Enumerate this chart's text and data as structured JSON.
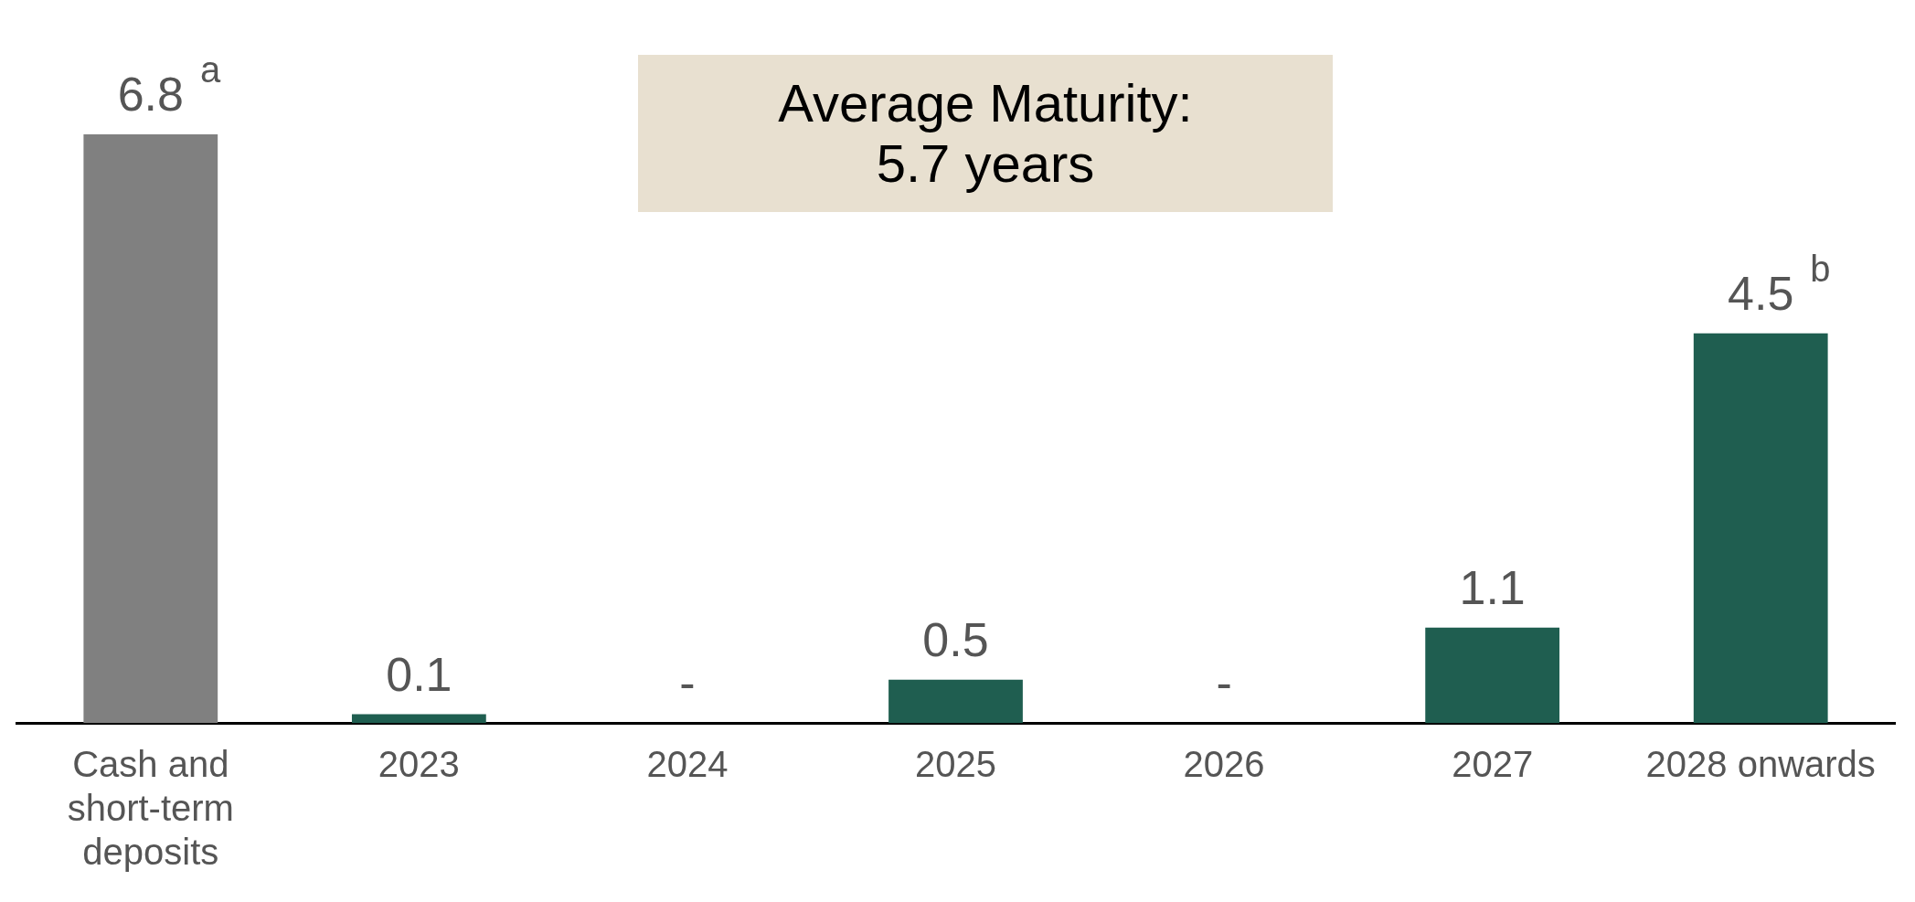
{
  "chart_data": {
    "type": "bar",
    "categories": [
      "Cash and short-term deposits",
      "2023",
      "2024",
      "2025",
      "2026",
      "2027",
      "2028 onwards"
    ],
    "values": [
      6.8,
      0.1,
      0,
      0.5,
      0,
      1.1,
      4.5
    ],
    "colors": [
      "#808080",
      "#1f5e50",
      "#1f5e50",
      "#1f5e50",
      "#1f5e50",
      "#1f5e50",
      "#1f5e50"
    ],
    "value_labels": [
      "6.8$^{a}$",
      "0.1",
      "-",
      "0.5",
      "-",
      "1.1",
      "4.5$^{b}$"
    ],
    "annotations": [
      "Average Maturity:\n5.7 years"
    ],
    "grid": false,
    "legend": false,
    "tick_labels": "x"
  }
}
